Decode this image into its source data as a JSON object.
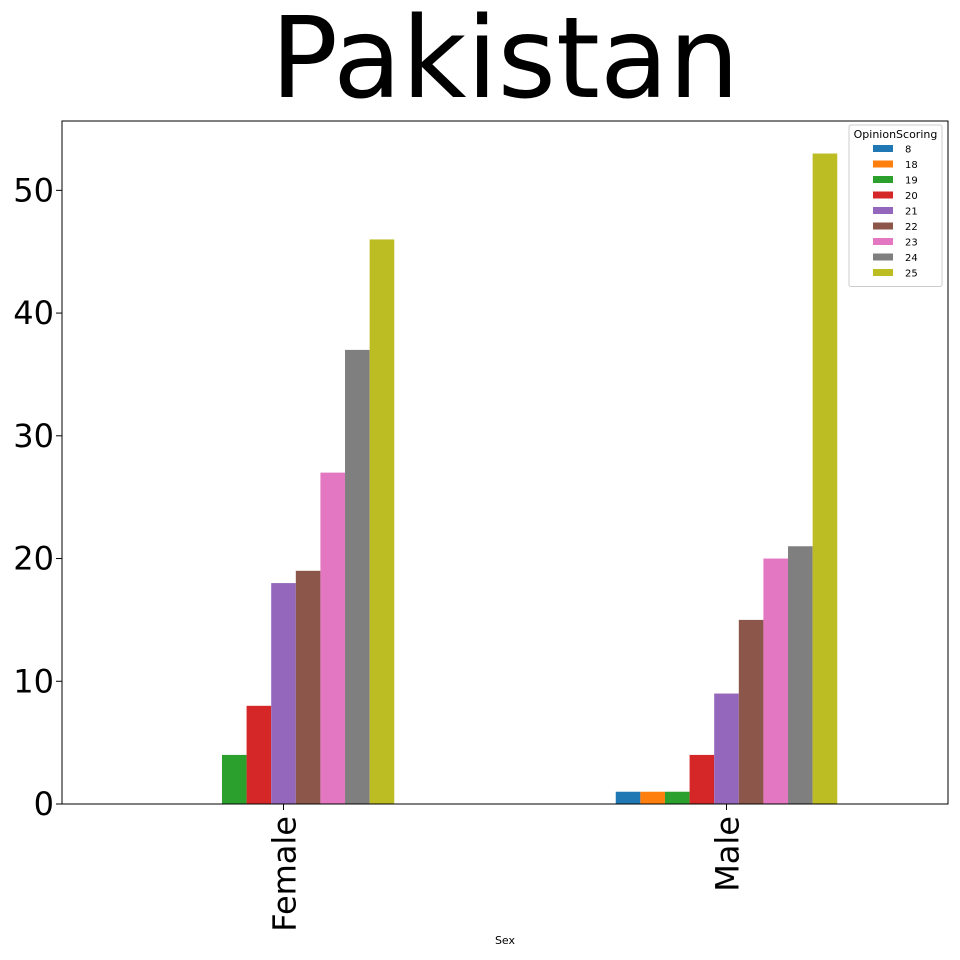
{
  "chart_data": {
    "type": "bar",
    "title": "Pakistan",
    "xlabel": "Sex",
    "ylabel": "",
    "categories": [
      "Female",
      "Male"
    ],
    "ylim": [
      0,
      55.65
    ],
    "yticks": [
      0,
      10,
      20,
      30,
      40,
      50
    ],
    "grid": false,
    "legend": {
      "title": "OpinionScoring",
      "placement": "top-right"
    },
    "series": [
      {
        "name": "8",
        "color": "#1f77b4",
        "values": [
          0,
          1
        ]
      },
      {
        "name": "18",
        "color": "#ff7f0e",
        "values": [
          0,
          1
        ]
      },
      {
        "name": "19",
        "color": "#2ca02c",
        "values": [
          4,
          1
        ]
      },
      {
        "name": "20",
        "color": "#d62728",
        "values": [
          8,
          4
        ]
      },
      {
        "name": "21",
        "color": "#9467bd",
        "values": [
          18,
          9
        ]
      },
      {
        "name": "22",
        "color": "#8c564b",
        "values": [
          19,
          15
        ]
      },
      {
        "name": "23",
        "color": "#e377c2",
        "values": [
          27,
          20
        ]
      },
      {
        "name": "24",
        "color": "#7f7f7f",
        "values": [
          37,
          21
        ]
      },
      {
        "name": "25",
        "color": "#bcbd22",
        "values": [
          46,
          53
        ]
      }
    ]
  }
}
